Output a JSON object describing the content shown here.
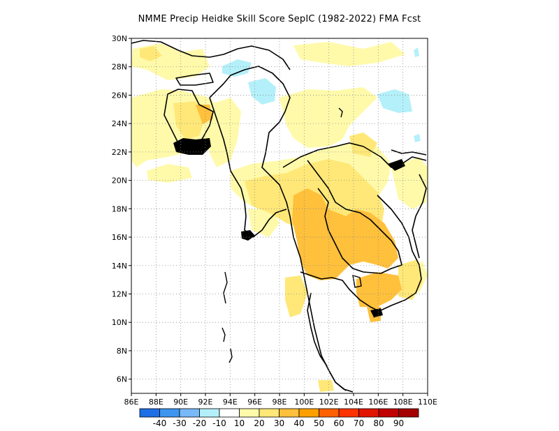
{
  "title": "NMME Precip Heidke Skill Score SepIC (1982-2022) FMA Fcst",
  "map": {
    "lon_range": [
      86,
      110
    ],
    "lat_range": [
      5,
      30
    ],
    "x_ticks": [
      "86E",
      "88E",
      "90E",
      "92E",
      "94E",
      "96E",
      "98E",
      "100E",
      "102E",
      "104E",
      "106E",
      "108E",
      "110E"
    ],
    "y_ticks": [
      "6N",
      "8N",
      "10N",
      "12N",
      "14N",
      "16N",
      "18N",
      "20N",
      "22N",
      "24N",
      "26N",
      "28N",
      "30N"
    ],
    "grid": "dotted"
  },
  "colorbar": {
    "colors": [
      "#1e6ee6",
      "#3c96f0",
      "#78b9fa",
      "#b4f0fa",
      "#ffffff",
      "#fffaaa",
      "#ffe878",
      "#ffc03c",
      "#ffa000",
      "#ff6000",
      "#ff3200",
      "#e11400",
      "#c00000",
      "#a50000"
    ],
    "labels": [
      "-40",
      "-30",
      "-20",
      "-10",
      "10",
      "20",
      "30",
      "40",
      "50",
      "60",
      "70",
      "80",
      "90"
    ]
  }
}
